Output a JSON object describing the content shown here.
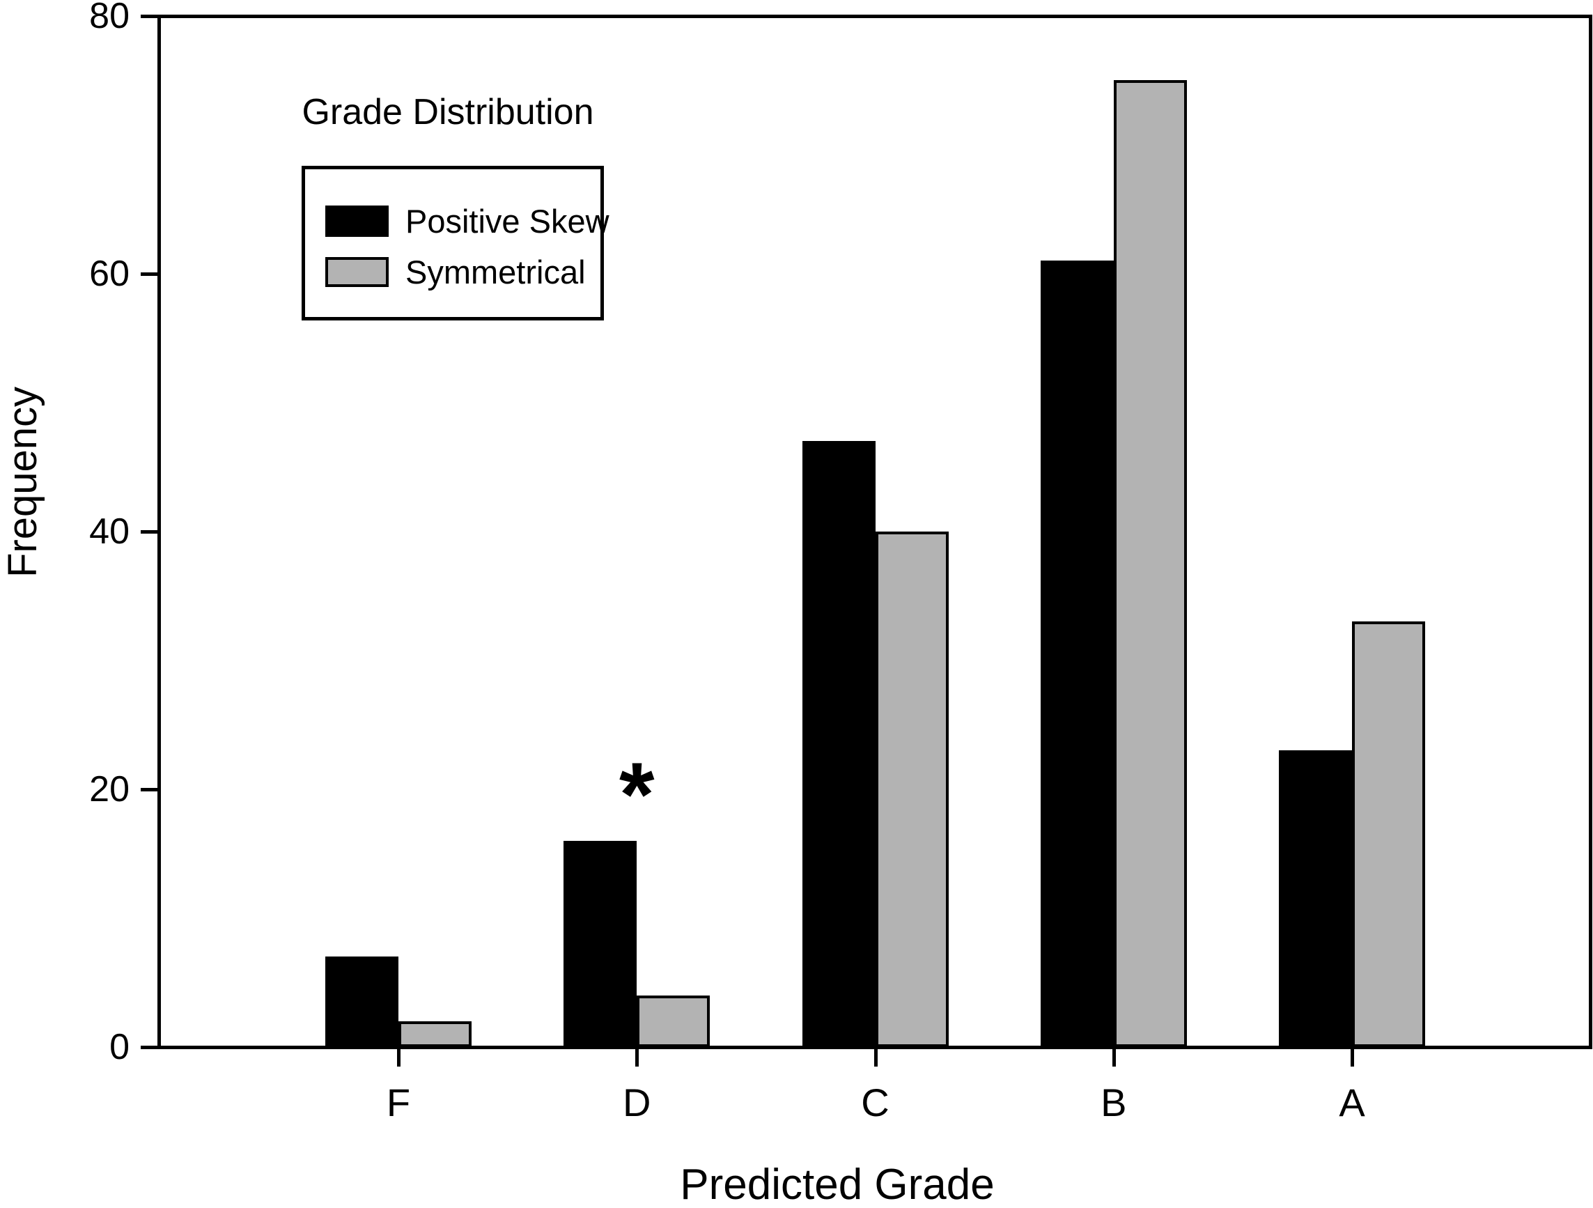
{
  "chart_data": {
    "type": "bar",
    "title": "Grade Distribution",
    "categories": [
      "F",
      "D",
      "C",
      "B",
      "A"
    ],
    "series": [
      {
        "name": "Positive Skew",
        "color": "#000000",
        "values": [
          7,
          16,
          47,
          61,
          23
        ]
      },
      {
        "name": "Symmetrical",
        "color": "#b3b3b3",
        "values": [
          2,
          4,
          40,
          75,
          33
        ]
      }
    ],
    "xlabel": "Predicted Grade",
    "ylabel": "Frequency",
    "ylim": [
      0,
      80
    ],
    "yticks": [
      0,
      20,
      40,
      60,
      80
    ],
    "grid": false,
    "legend": {
      "position": "upper-left",
      "entries": [
        "Positive Skew",
        "Symmetrical"
      ]
    },
    "annotations": [
      {
        "text": "*",
        "category": "D",
        "series": "Positive Skew"
      }
    ],
    "axis_color": "#000000",
    "background_color": "#ffffff"
  }
}
